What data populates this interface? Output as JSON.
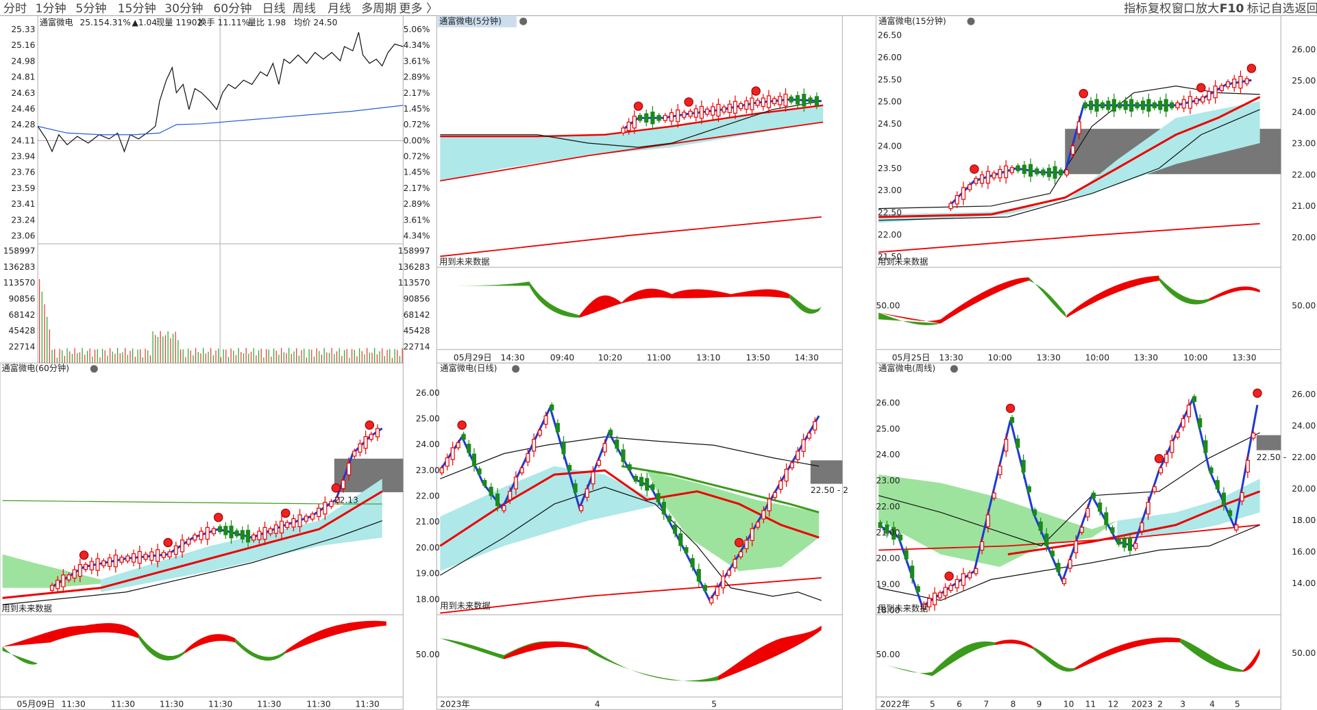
{
  "toolbar": {
    "tabs": [
      "分时",
      "1分钟",
      "5分钟",
      "15分钟",
      "30分钟",
      "60分钟",
      "日线",
      "周线",
      "月线",
      "多周期",
      "更多 〉"
    ],
    "active_tab": 7,
    "tools": [
      "指标",
      "复权",
      "窗口",
      "放大",
      "F10",
      "标记",
      "自选",
      "返回"
    ]
  },
  "panels": [
    {
      "title": "通富微电",
      "quote": [
        "25.15",
        "4.31%",
        "▲1.04",
        "现量 11902",
        "换手 11.11%",
        "量比 1.98",
        "均价 24.50"
      ],
      "price_ticks": [
        "25.33",
        "25.16",
        "24.98",
        "24.81",
        "24.63",
        "24.46",
        "24.28",
        "24.11",
        "23.94",
        "23.76",
        "23.59",
        "23.41",
        "23.24",
        "23.06"
      ],
      "pct_ticks": [
        "5.06%",
        "4.34%",
        "3.61%",
        "2.89%",
        "2.17%",
        "1.45%",
        "0.72%",
        "0.00%",
        "0.72%",
        "1.45%",
        "2.17%",
        "2.89%",
        "3.61%",
        "4.34%"
      ],
      "volume_ticks": [
        "158997",
        "136283",
        "113570",
        "90856",
        "68142",
        "45428",
        "22714"
      ]
    },
    {
      "title": "通富微电(5分钟)",
      "note": "用到未来数据",
      "x_labels": [
        "05月29日",
        "14:30",
        "09:40",
        "10:20",
        "11:00",
        "13:10",
        "13:50",
        "14:30"
      ]
    },
    {
      "title": "通富微电(15分钟)",
      "note": "用到未来数据",
      "left_ticks": [
        "26.50",
        "26.00",
        "25.50",
        "25.00",
        "24.50",
        "24.00",
        "23.50",
        "23.00",
        "22.50",
        "22.00",
        "21.50"
      ],
      "right_ticks": [
        "26.00",
        "25.00",
        "24.00",
        "23.00",
        "22.00",
        "21.00",
        "20.00"
      ],
      "sub_left": "50.00",
      "sub_right": "50.00",
      "x_labels": [
        "05月25日",
        "13:30",
        "10:00",
        "13:30",
        "10:00",
        "13:30",
        "10:00",
        "13:30"
      ]
    },
    {
      "title": "通富微电(60分钟)",
      "note": "用到未来数据",
      "annotation": "22.13",
      "x_labels": [
        "05月09日",
        "11:30",
        "11:30",
        "11:30",
        "11:30",
        "11:30",
        "11:30",
        "11:30"
      ]
    },
    {
      "title": "通富微电(日线)",
      "note": "用到未来数据",
      "annotation": "22.50 - 2",
      "left_ticks": [
        "26.00",
        "25.00",
        "24.00",
        "23.00",
        "22.00",
        "21.00",
        "20.00",
        "19.00",
        "18.00"
      ],
      "sub_left": "50.00",
      "x_labels": [
        "2023年",
        "4",
        "5"
      ]
    },
    {
      "title": "通富微电(周线)",
      "note": "用到未来数据",
      "annotation": "22.50 -",
      "left_ticks": [
        "26.00",
        "25.00",
        "24.00",
        "23.00",
        "22.00",
        "21.00",
        "20.00",
        "19.00",
        "18.00"
      ],
      "right_ticks": [
        "26.00",
        "24.00",
        "22.00",
        "20.00",
        "18.00",
        "16.00",
        "14.00"
      ],
      "sub_left": "50.00",
      "sub_right": "50.00",
      "x_labels": [
        "2022年",
        "5",
        "6",
        "7",
        "8",
        "9",
        "10",
        "11",
        "12",
        "2023",
        "2",
        "3",
        "4",
        "5"
      ]
    }
  ]
}
